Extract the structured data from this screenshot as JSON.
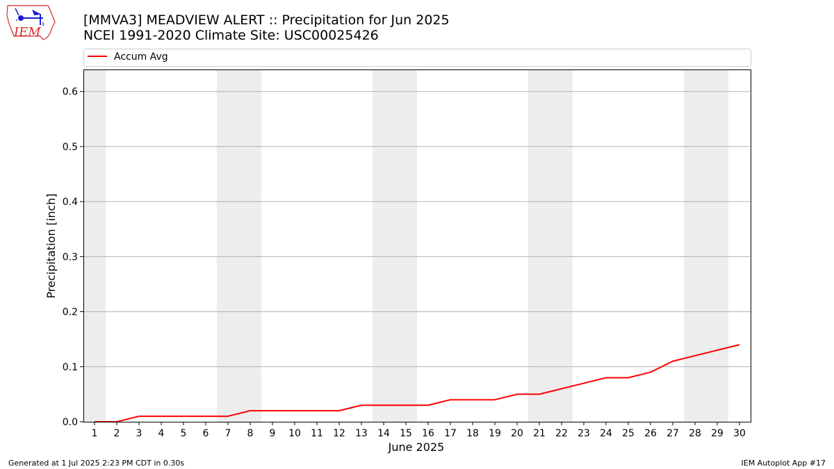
{
  "titles": {
    "line1": "[MMVA3] MEADVIEW ALERT :: Precipitation for Jun 2025",
    "line2": "NCEI 1991-2020 Climate Site: USC00025426"
  },
  "logo": {
    "text": "IEM",
    "icon": "iowa-weather-station-logo"
  },
  "footer": {
    "left": "Generated at 1 Jul 2025 2:23 PM CDT in 0.30s",
    "right": "IEM Autoplot App #17"
  },
  "colors": {
    "series": "#ff0000",
    "weekend_shade": "#ededed",
    "grid": "#b0b0b0",
    "logo_red": "#d42b2b",
    "logo_blue": "#1a1ad4"
  },
  "chart_data": {
    "type": "line",
    "xlabel": "June 2025",
    "ylabel": "Precipitation [inch]",
    "x": [
      1,
      2,
      3,
      4,
      5,
      6,
      7,
      8,
      9,
      10,
      11,
      12,
      13,
      14,
      15,
      16,
      17,
      18,
      19,
      20,
      21,
      22,
      23,
      24,
      25,
      26,
      27,
      28,
      29,
      30
    ],
    "xlim": [
      0.5,
      30.5
    ],
    "ylim": [
      0,
      0.64
    ],
    "yticks": [
      0.0,
      0.1,
      0.2,
      0.3,
      0.4,
      0.5,
      0.6
    ],
    "ytick_labels": [
      "0.0",
      "0.1",
      "0.2",
      "0.3",
      "0.4",
      "0.5",
      "0.6"
    ],
    "grid": "y-major",
    "legend": "top",
    "shaded_days": [
      1,
      7,
      8,
      14,
      15,
      21,
      22,
      28,
      29
    ],
    "series": [
      {
        "name": "Accum Avg",
        "values": [
          0.0,
          0.0,
          0.01,
          0.01,
          0.01,
          0.01,
          0.01,
          0.02,
          0.02,
          0.02,
          0.02,
          0.02,
          0.03,
          0.03,
          0.03,
          0.03,
          0.04,
          0.04,
          0.04,
          0.05,
          0.05,
          0.06,
          0.07,
          0.08,
          0.08,
          0.09,
          0.11,
          0.12,
          0.13,
          0.14
        ]
      }
    ]
  }
}
